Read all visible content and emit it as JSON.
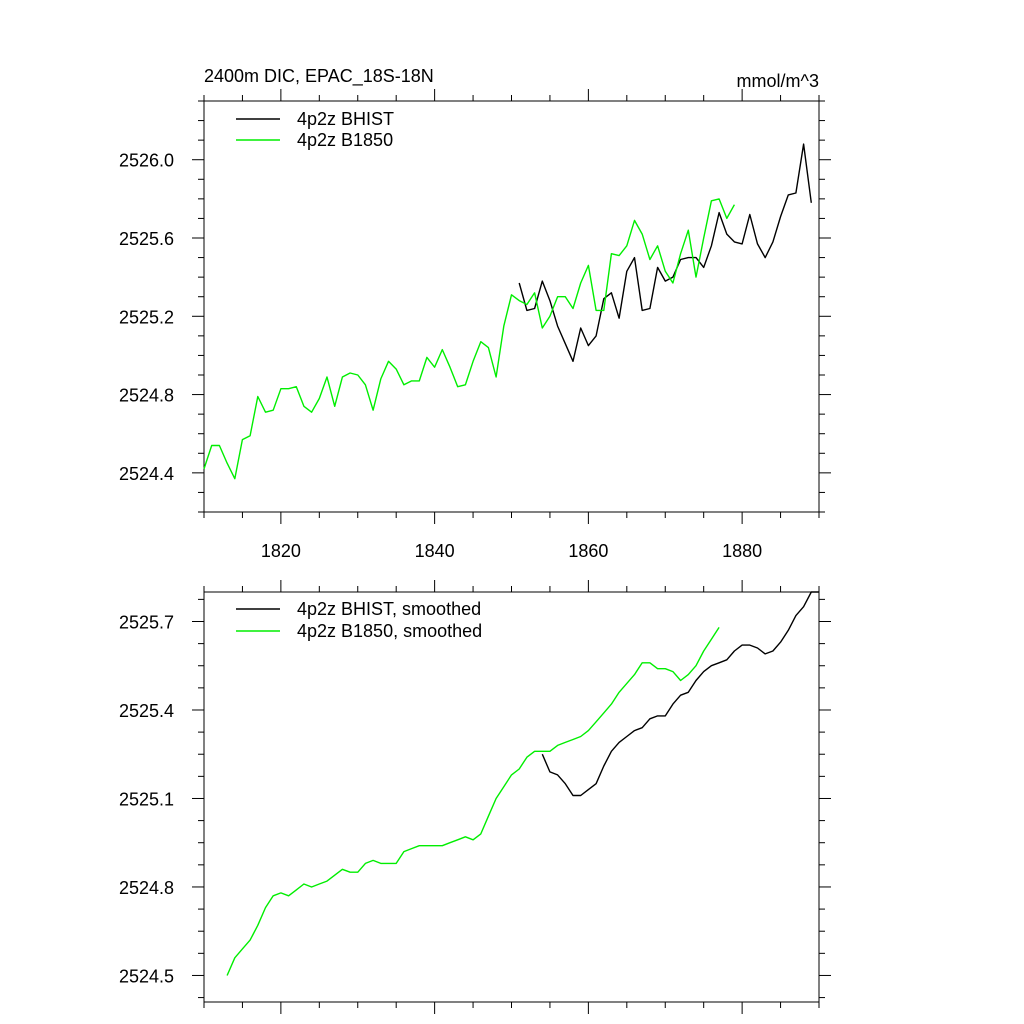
{
  "figure": {
    "title_left": "2400m DIC, EPAC_18S-18N",
    "title_right": "mmol/m^3"
  },
  "chart_data": [
    {
      "type": "line",
      "xlim": [
        1810,
        1890
      ],
      "ylim": [
        2524.2,
        2526.3
      ],
      "x_ticks": [
        1820,
        1840,
        1860,
        1880
      ],
      "x_tick_labels": [
        "1820",
        "1840",
        "1860",
        "1880"
      ],
      "y_ticks": [
        2524.4,
        2524.8,
        2525.2,
        2525.6,
        2526.0
      ],
      "y_tick_labels": [
        "2524.4",
        "2524.8",
        "2525.2",
        "2525.6",
        "2526.0"
      ],
      "legend": "top-left",
      "series": [
        {
          "name": "4p2z BHIST",
          "color": "#000000",
          "x": [
            1851,
            1852,
            1853,
            1854,
            1855,
            1856,
            1857,
            1858,
            1859,
            1860,
            1861,
            1862,
            1863,
            1864,
            1865,
            1866,
            1867,
            1868,
            1869,
            1870,
            1871,
            1872,
            1873,
            1874,
            1875,
            1876,
            1877,
            1878,
            1879,
            1880,
            1881,
            1882,
            1883,
            1884,
            1885,
            1886,
            1887,
            1888,
            1889
          ],
          "y": [
            2525.37,
            2525.23,
            2525.24,
            2525.38,
            2525.28,
            2525.15,
            2525.06,
            2524.97,
            2525.14,
            2525.05,
            2525.1,
            2525.29,
            2525.32,
            2525.19,
            2525.43,
            2525.5,
            2525.23,
            2525.24,
            2525.45,
            2525.38,
            2525.4,
            2525.49,
            2525.5,
            2525.5,
            2525.45,
            2525.56,
            2525.73,
            2525.62,
            2525.58,
            2525.57,
            2525.72,
            2525.57,
            2525.5,
            2525.58,
            2525.71,
            2525.82,
            2525.83,
            2526.08,
            2525.78
          ]
        },
        {
          "name": "4p2z B1850",
          "color": "#00ee00",
          "x": [
            1810,
            1811,
            1812,
            1813,
            1814,
            1815,
            1816,
            1817,
            1818,
            1819,
            1820,
            1821,
            1822,
            1823,
            1824,
            1825,
            1826,
            1827,
            1828,
            1829,
            1830,
            1831,
            1832,
            1833,
            1834,
            1835,
            1836,
            1837,
            1838,
            1839,
            1840,
            1841,
            1842,
            1843,
            1844,
            1845,
            1846,
            1847,
            1848,
            1849,
            1850,
            1851,
            1852,
            1853,
            1854,
            1855,
            1856,
            1857,
            1858,
            1859,
            1860,
            1861,
            1862,
            1863,
            1864,
            1865,
            1866,
            1867,
            1868,
            1869,
            1870,
            1871,
            1872,
            1873,
            1874,
            1875,
            1876,
            1877,
            1878,
            1879
          ],
          "y": [
            2524.42,
            2524.54,
            2524.54,
            2524.45,
            2524.37,
            2524.57,
            2524.59,
            2524.79,
            2524.71,
            2524.72,
            2524.83,
            2524.83,
            2524.84,
            2524.74,
            2524.71,
            2524.78,
            2524.89,
            2524.74,
            2524.89,
            2524.91,
            2524.9,
            2524.85,
            2524.72,
            2524.88,
            2524.97,
            2524.93,
            2524.85,
            2524.87,
            2524.87,
            2524.99,
            2524.94,
            2525.03,
            2524.94,
            2524.84,
            2524.85,
            2524.97,
            2525.07,
            2525.04,
            2524.89,
            2525.15,
            2525.31,
            2525.28,
            2525.26,
            2525.32,
            2525.14,
            2525.2,
            2525.3,
            2525.3,
            2525.24,
            2525.37,
            2525.46,
            2525.23,
            2525.23,
            2525.52,
            2525.51,
            2525.56,
            2525.69,
            2525.62,
            2525.49,
            2525.56,
            2525.43,
            2525.37,
            2525.52,
            2525.64,
            2525.4,
            2525.6,
            2525.79,
            2525.8,
            2525.7,
            2525.77
          ]
        }
      ]
    },
    {
      "type": "line",
      "xlim": [
        1810,
        1890
      ],
      "ylim": [
        2524.41,
        2525.8
      ],
      "x_ticks": [
        1820,
        1840,
        1860,
        1880
      ],
      "x_tick_labels": [],
      "y_ticks": [
        2524.5,
        2524.8,
        2525.1,
        2525.4,
        2525.7
      ],
      "y_tick_labels": [
        "2524.5",
        "2524.8",
        "2525.1",
        "2525.4",
        "2525.7"
      ],
      "legend": "top-left",
      "series": [
        {
          "name": "4p2z BHIST, smoothed",
          "color": "#000000",
          "x": [
            1854,
            1855,
            1856,
            1857,
            1858,
            1859,
            1860,
            1861,
            1862,
            1863,
            1864,
            1865,
            1866,
            1867,
            1868,
            1869,
            1870,
            1871,
            1872,
            1873,
            1874,
            1875,
            1876,
            1877,
            1878,
            1879,
            1880,
            1881,
            1882,
            1883,
            1884,
            1885,
            1886,
            1887,
            1888,
            1889,
            1890
          ],
          "y": [
            2525.25,
            2525.19,
            2525.18,
            2525.15,
            2525.11,
            2525.11,
            2525.13,
            2525.15,
            2525.21,
            2525.26,
            2525.29,
            2525.31,
            2525.33,
            2525.34,
            2525.37,
            2525.38,
            2525.38,
            2525.42,
            2525.45,
            2525.46,
            2525.5,
            2525.53,
            2525.55,
            2525.56,
            2525.57,
            2525.6,
            2525.62,
            2525.62,
            2525.61,
            2525.59,
            2525.6,
            2525.63,
            2525.67,
            2525.72,
            2525.75,
            2525.8,
            2525.81
          ]
        },
        {
          "name": "4p2z B1850, smoothed",
          "color": "#00ee00",
          "x": [
            1813,
            1814,
            1815,
            1816,
            1817,
            1818,
            1819,
            1820,
            1821,
            1822,
            1823,
            1824,
            1825,
            1826,
            1827,
            1828,
            1829,
            1830,
            1831,
            1832,
            1833,
            1834,
            1835,
            1836,
            1837,
            1838,
            1839,
            1840,
            1841,
            1842,
            1843,
            1844,
            1845,
            1846,
            1847,
            1848,
            1849,
            1850,
            1851,
            1852,
            1853,
            1854,
            1855,
            1856,
            1857,
            1858,
            1859,
            1860,
            1861,
            1862,
            1863,
            1864,
            1865,
            1866,
            1867,
            1868,
            1869,
            1870,
            1871,
            1872,
            1873,
            1874,
            1875,
            1876,
            1877
          ],
          "y": [
            2524.5,
            2524.56,
            2524.59,
            2524.62,
            2524.67,
            2524.73,
            2524.77,
            2524.78,
            2524.77,
            2524.79,
            2524.81,
            2524.8,
            2524.81,
            2524.82,
            2524.84,
            2524.86,
            2524.85,
            2524.85,
            2524.88,
            2524.89,
            2524.88,
            2524.88,
            2524.88,
            2524.92,
            2524.93,
            2524.94,
            2524.94,
            2524.94,
            2524.94,
            2524.95,
            2524.96,
            2524.97,
            2524.96,
            2524.98,
            2525.04,
            2525.1,
            2525.14,
            2525.18,
            2525.2,
            2525.24,
            2525.26,
            2525.26,
            2525.26,
            2525.28,
            2525.29,
            2525.3,
            2525.31,
            2525.33,
            2525.36,
            2525.39,
            2525.42,
            2525.46,
            2525.49,
            2525.52,
            2525.56,
            2525.56,
            2525.54,
            2525.54,
            2525.53,
            2525.5,
            2525.52,
            2525.55,
            2525.6,
            2525.64,
            2525.68
          ]
        }
      ]
    }
  ]
}
